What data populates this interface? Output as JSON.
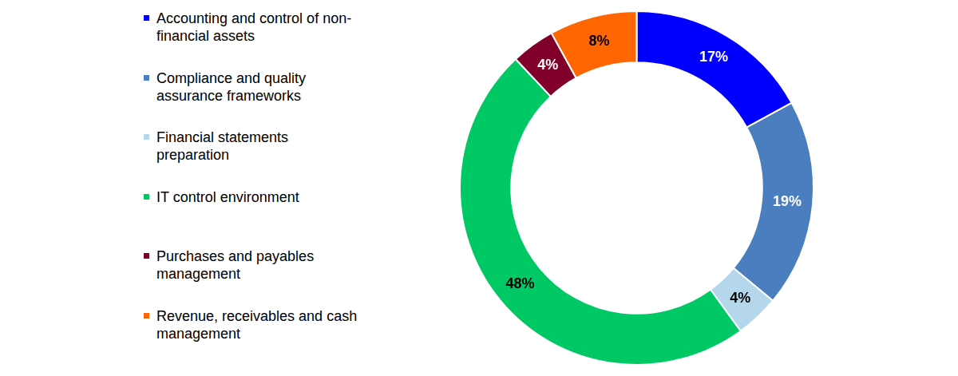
{
  "chart_data": {
    "type": "doughnut",
    "categories": [
      "Accounting and control of non-financial assets",
      "Compliance and quality assurance frameworks",
      "Financial statements preparation",
      "IT control environment",
      "Purchases and payables management",
      "Revenue, receivables and cash management"
    ],
    "values": [
      17,
      19,
      4,
      48,
      4,
      8
    ],
    "value_labels": [
      "17%",
      "19%",
      "4%",
      "48%",
      "4%",
      "8%"
    ],
    "colors": [
      "#0000ff",
      "#4a7ebf",
      "#b4d7ec",
      "#00c864",
      "#80002a",
      "#ff6600"
    ],
    "data_labels": true,
    "legend": "left"
  }
}
